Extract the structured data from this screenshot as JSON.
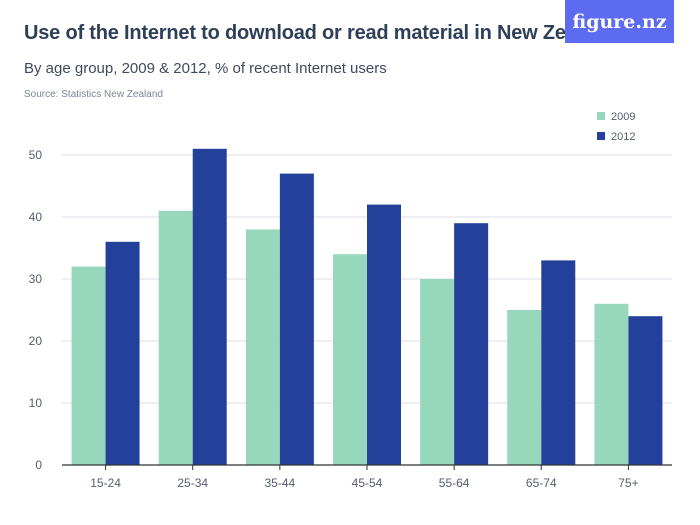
{
  "header": {
    "title": "Use of the Internet to download or read material in New Zealand",
    "subtitle": "By age group, 2009 & 2012, % of recent Internet users",
    "source": "Source: Statistics New Zealand",
    "logo": "figure.nz"
  },
  "colors": {
    "series_2009": "#97d8bc",
    "series_2012": "#23409a",
    "grid": "#dcdfe4",
    "axis": "#333333",
    "logo_bg": "#5c6bf0"
  },
  "chart_data": {
    "type": "bar",
    "categories": [
      "15-24",
      "25-34",
      "35-44",
      "45-54",
      "55-64",
      "65-74",
      "75+"
    ],
    "series": [
      {
        "name": "2009",
        "values": [
          32,
          41,
          38,
          34,
          30,
          25,
          26
        ]
      },
      {
        "name": "2012",
        "values": [
          36,
          51,
          47,
          42,
          39,
          33,
          24
        ]
      }
    ],
    "yticks": [
      0,
      10,
      20,
      30,
      40,
      50
    ],
    "ylim": [
      0,
      50
    ],
    "grid": true,
    "legend_position": "top-right"
  }
}
